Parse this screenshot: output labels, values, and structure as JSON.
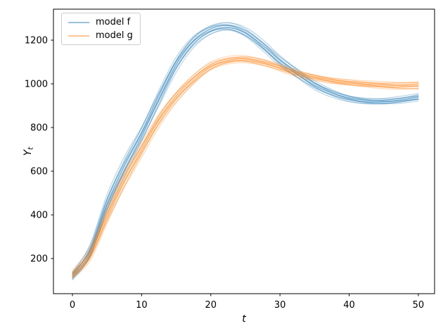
{
  "figure": {
    "background": "#ffffff",
    "spine_color": "#000000",
    "text_color": "#000000"
  },
  "chart_data": {
    "type": "line",
    "title": "",
    "subtitle": "",
    "xlabel": "t",
    "ylabel": "Y_t",
    "ylabel_base": "Y",
    "ylabel_sub": "t",
    "grid": false,
    "legend_position": "upper-left",
    "xlim": [
      -2.75,
      52.35
    ],
    "ylim": [
      39,
      1342
    ],
    "xticks": [
      0,
      10,
      20,
      30,
      40,
      50
    ],
    "yticks": [
      200,
      400,
      600,
      800,
      1000,
      1200
    ],
    "ensemble": true,
    "t": [
      0,
      2.5,
      5,
      7.5,
      10,
      12.5,
      15,
      17.5,
      20,
      22.5,
      25,
      27.5,
      30,
      32.5,
      35,
      37.5,
      40,
      42.5,
      45,
      47.5,
      50
    ],
    "series": [
      {
        "name": "model f",
        "color": "#1f77b4",
        "alpha": 0.3,
        "n_lines": 14,
        "linewidth": 1.2,
        "mean": [
          120,
          230,
          450,
          620,
          770,
          935,
          1090,
          1195,
          1248,
          1262,
          1235,
          1175,
          1105,
          1048,
          995,
          958,
          933,
          921,
          919,
          926,
          938
        ],
        "spread": [
          18,
          28,
          35,
          38,
          32,
          33,
          30,
          25,
          20,
          18,
          20,
          22,
          22,
          20,
          18,
          16,
          14,
          13,
          13,
          14,
          15
        ],
        "peak": {
          "t": 22,
          "y": 1262
        },
        "end": {
          "t": 50,
          "y": 938
        }
      },
      {
        "name": "model g",
        "color": "#ff7f0e",
        "alpha": 0.3,
        "n_lines": 14,
        "linewidth": 1.2,
        "mean": [
          125,
          215,
          395,
          560,
          700,
          835,
          940,
          1020,
          1080,
          1107,
          1112,
          1098,
          1075,
          1048,
          1030,
          1015,
          1005,
          998,
          993,
          991,
          993
        ],
        "spread": [
          18,
          26,
          32,
          34,
          30,
          28,
          25,
          22,
          18,
          15,
          14,
          14,
          14,
          14,
          13,
          13,
          13,
          13,
          14,
          15,
          16
        ],
        "peak": {
          "t": 24,
          "y": 1113
        },
        "end": {
          "t": 50,
          "y": 993
        }
      }
    ],
    "crossing_point": {
      "t": 32.5,
      "y": 1048
    }
  },
  "legend": {
    "swatch_alpha": 0.45
  }
}
